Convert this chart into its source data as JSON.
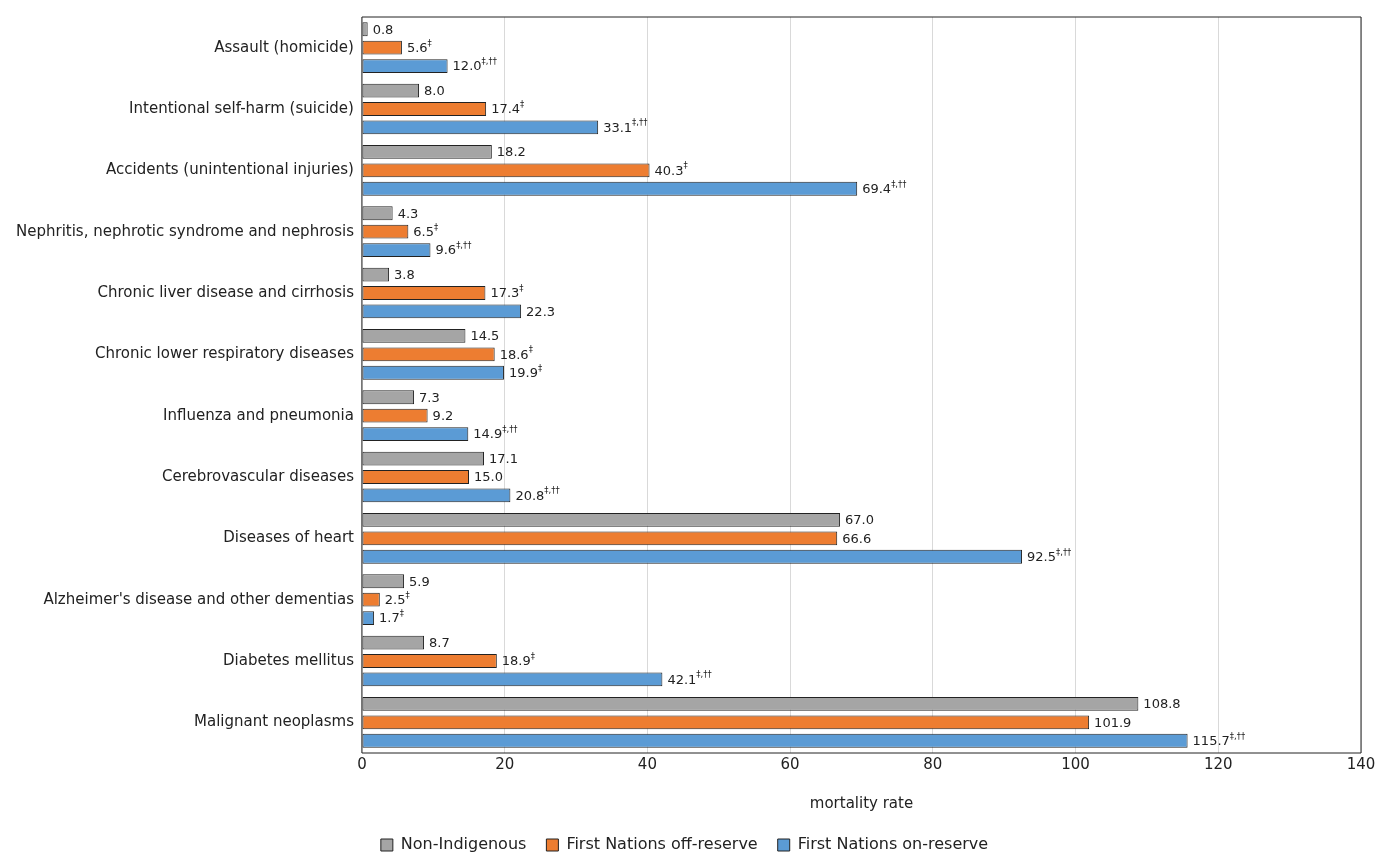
{
  "chart_data": {
    "type": "bar",
    "orientation": "horizontal",
    "xlabel": "mortality rate",
    "categories": [
      "Assault (homicide)",
      "Intentional self-harm (suicide)",
      "Accidents (unintentional injuries)",
      "Nephritis, nephrotic syndrome and nephrosis",
      "Chronic liver disease and cirrhosis",
      "Chronic lower respiratory diseases",
      "Influenza and pneumonia",
      "Cerebrovascular diseases",
      "Diseases of heart",
      "Alzheimer's disease and other dementias",
      "Diabetes mellitus",
      "Malignant neoplasms"
    ],
    "series": [
      {
        "name": "Non-Indigenous",
        "color": "#a5a5a5",
        "values": [
          0.8,
          8.0,
          18.2,
          4.3,
          3.8,
          14.5,
          7.3,
          17.1,
          67.0,
          5.9,
          8.7,
          108.8
        ],
        "value_labels": [
          "0.8",
          "8.0",
          "18.2",
          "4.3",
          "3.8",
          "14.5",
          "7.3",
          "17.1",
          "67.0",
          "5.9",
          "8.7",
          "108.8"
        ]
      },
      {
        "name": "First Nations off-reserve",
        "color": "#ed7d31",
        "values": [
          5.6,
          17.4,
          40.3,
          6.5,
          17.3,
          18.6,
          9.2,
          15.0,
          66.6,
          2.5,
          18.9,
          101.9
        ],
        "value_labels": [
          "5.6$^{‡}$",
          "17.4$^{‡}$",
          "40.3$^{‡}$",
          "6.5$^{‡}$",
          "17.3$^{‡}$",
          "18.6$^{‡}$",
          "9.2",
          "15.0",
          "66.6",
          "2.5$^{‡}$",
          "18.9$^{‡}$",
          "101.9"
        ]
      },
      {
        "name": "First Nations on-reserve",
        "color": "#5b9bd5",
        "values": [
          12.0,
          33.1,
          69.4,
          9.6,
          22.3,
          19.9,
          14.9,
          20.8,
          92.5,
          1.7,
          42.1,
          115.7
        ],
        "value_labels": [
          "12.0$^{‡,††}$",
          "33.1$^{‡,††}$",
          "69.4$^{‡,††}$",
          "9.6$^{‡,††}$",
          "22.3",
          "19.9$^{‡}$",
          "14.9$^{‡,††}$",
          "20.8$^{‡,††}$",
          "92.5$^{‡,††}$",
          "1.7$^{‡}$",
          "42.1$^{‡,††}$",
          "115.7$^{‡,††}$"
        ]
      }
    ],
    "xlim": [
      0,
      140
    ],
    "xticks": [
      0,
      20,
      40,
      60,
      80,
      100,
      120,
      140
    ],
    "grid": "x",
    "legend": "bottom"
  }
}
